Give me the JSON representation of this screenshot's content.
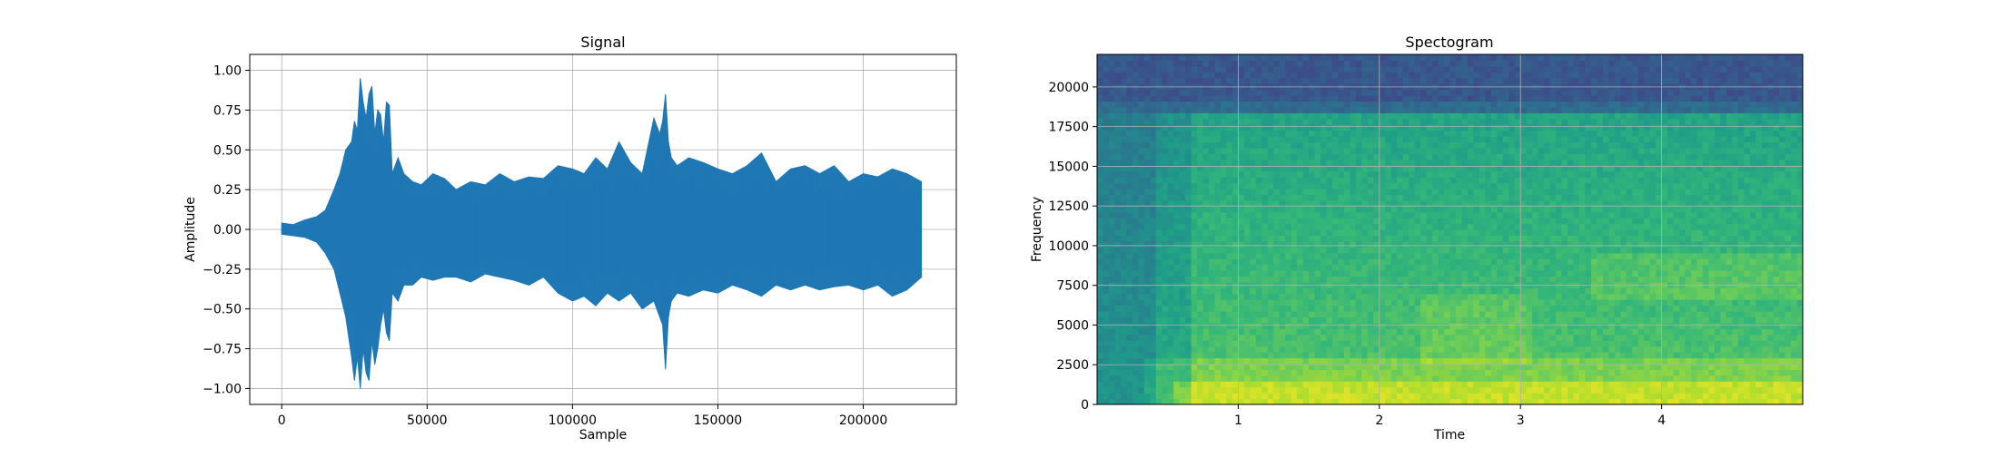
{
  "chart_data": [
    {
      "type": "line",
      "title": "Signal",
      "xlabel": "Sample",
      "ylabel": "Amplitude",
      "xlim": [
        -11000,
        232000
      ],
      "ylim": [
        -1.1,
        1.1
      ],
      "xticks": [
        0,
        50000,
        100000,
        150000,
        200000
      ],
      "xtick_labels": [
        "0",
        "50000",
        "100000",
        "150000",
        "200000"
      ],
      "yticks": [
        -1.0,
        -0.75,
        -0.5,
        -0.25,
        0.0,
        0.25,
        0.5,
        0.75,
        1.0
      ],
      "ytick_labels": [
        "−1.00",
        "−0.75",
        "−0.50",
        "−0.25",
        "0.00",
        "0.25",
        "0.50",
        "0.75",
        "1.00"
      ],
      "grid": true,
      "line_color": "#1f77b4",
      "series": [
        {
          "x": [
            0,
            4000,
            8000,
            12000,
            15000,
            18000,
            20000,
            22000,
            24000,
            25000,
            26000,
            27000,
            28000,
            29000,
            30000,
            31000,
            32000,
            33000,
            34000,
            35000,
            36000,
            37000,
            38000,
            40000,
            42000,
            45000,
            48000,
            52000,
            56000,
            60000,
            65000,
            70000,
            75000,
            80000,
            85000,
            90000,
            95000,
            100000,
            104000,
            108000,
            112000,
            116000,
            120000,
            124000,
            128000,
            130000,
            131000,
            132000,
            133000,
            134000,
            136000,
            140000,
            145000,
            150000,
            155000,
            160000,
            165000,
            170000,
            175000,
            180000,
            185000,
            190000,
            195000,
            200000,
            205000,
            210000,
            215000,
            220000
          ],
          "upper": [
            0.04,
            0.03,
            0.06,
            0.08,
            0.12,
            0.25,
            0.35,
            0.5,
            0.55,
            0.68,
            0.62,
            0.95,
            0.8,
            0.7,
            0.85,
            0.9,
            0.6,
            0.75,
            0.72,
            0.55,
            0.8,
            0.78,
            0.35,
            0.45,
            0.35,
            0.3,
            0.28,
            0.35,
            0.32,
            0.25,
            0.3,
            0.28,
            0.35,
            0.3,
            0.33,
            0.32,
            0.4,
            0.38,
            0.35,
            0.45,
            0.38,
            0.55,
            0.42,
            0.35,
            0.7,
            0.6,
            0.68,
            0.85,
            0.55,
            0.45,
            0.4,
            0.45,
            0.42,
            0.38,
            0.35,
            0.4,
            0.48,
            0.3,
            0.38,
            0.4,
            0.35,
            0.4,
            0.3,
            0.35,
            0.33,
            0.38,
            0.35,
            0.3
          ],
          "lower": [
            -0.03,
            -0.04,
            -0.05,
            -0.08,
            -0.15,
            -0.25,
            -0.4,
            -0.55,
            -0.8,
            -0.95,
            -0.8,
            -1.0,
            -0.75,
            -0.9,
            -0.95,
            -0.7,
            -0.85,
            -0.75,
            -0.6,
            -0.5,
            -0.65,
            -0.7,
            -0.4,
            -0.45,
            -0.35,
            -0.35,
            -0.3,
            -0.32,
            -0.3,
            -0.3,
            -0.33,
            -0.28,
            -0.3,
            -0.32,
            -0.35,
            -0.3,
            -0.4,
            -0.45,
            -0.42,
            -0.48,
            -0.4,
            -0.45,
            -0.4,
            -0.5,
            -0.45,
            -0.55,
            -0.6,
            -0.88,
            -0.55,
            -0.45,
            -0.4,
            -0.42,
            -0.38,
            -0.4,
            -0.35,
            -0.38,
            -0.42,
            -0.35,
            -0.38,
            -0.35,
            -0.38,
            -0.36,
            -0.35,
            -0.38,
            -0.35,
            -0.42,
            -0.38,
            -0.3
          ]
        }
      ]
    },
    {
      "type": "heatmap",
      "title": "Spectogram",
      "xlabel": "Time",
      "ylabel": "Frequency",
      "xlim": [
        0,
        5.0
      ],
      "ylim": [
        0,
        22050
      ],
      "xticks": [
        1,
        2,
        3,
        4
      ],
      "xtick_labels": [
        "1",
        "2",
        "3",
        "4"
      ],
      "yticks": [
        0,
        2500,
        5000,
        7500,
        10000,
        12500,
        15000,
        17500,
        20000
      ],
      "ytick_labels": [
        "0",
        "2500",
        "5000",
        "7500",
        "10000",
        "12500",
        "15000",
        "17500",
        "20000"
      ],
      "grid": true,
      "colormap": "viridis",
      "color_range": [
        0.0,
        1.0
      ]
    }
  ]
}
